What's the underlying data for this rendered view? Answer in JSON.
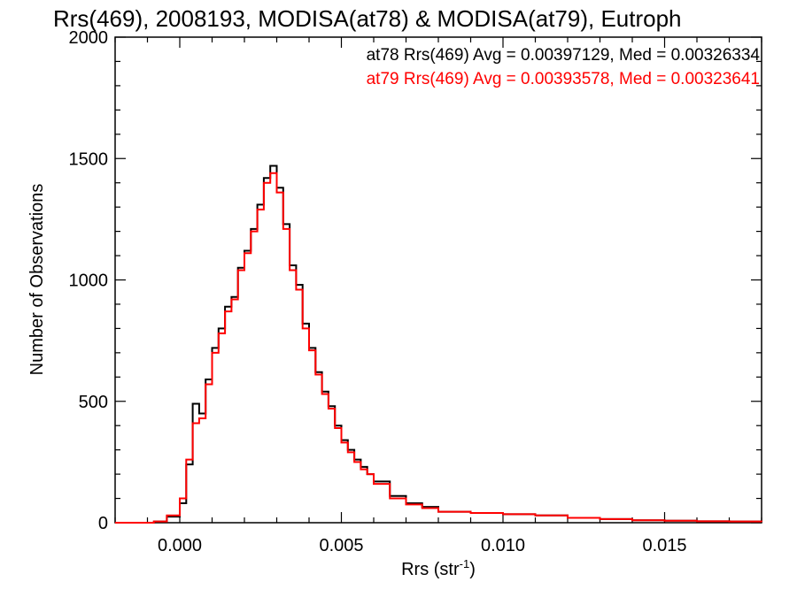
{
  "chart_data": {
    "type": "line",
    "title": "Rrs(469), 2008193, MODISA(at78) & MODISA(at79), Eutroph",
    "xlabel": "Rrs (str",
    "xlabel_sup": "-1",
    "xlabel_close": ")",
    "ylabel": "Number of Observations",
    "xlim": [
      -0.002,
      0.018
    ],
    "ylim": [
      0,
      2000
    ],
    "xticks": [
      0.0,
      0.005,
      0.01,
      0.015
    ],
    "xtick_labels": [
      "0.000",
      "0.005",
      "0.010",
      "0.015"
    ],
    "yticks": [
      0,
      500,
      1000,
      1500,
      2000
    ],
    "ytick_labels": [
      "0",
      "500",
      "1000",
      "1500",
      "2000"
    ],
    "grid": false,
    "legend_position": "top-right",
    "step_plot": true,
    "series": [
      {
        "name": "at78 Rrs(469) Avg = 0.00397129, Med = 0.00326334",
        "color": "#000000",
        "x": [
          -0.002,
          -0.0008,
          -0.0004,
          0.0,
          0.0002,
          0.0004,
          0.0006,
          0.0008,
          0.001,
          0.0012,
          0.0014,
          0.0016,
          0.0018,
          0.002,
          0.0022,
          0.0024,
          0.0026,
          0.0028,
          0.003,
          0.0032,
          0.0034,
          0.0036,
          0.0038,
          0.004,
          0.0042,
          0.0044,
          0.0046,
          0.0048,
          0.005,
          0.0052,
          0.0054,
          0.0056,
          0.0058,
          0.006,
          0.0065,
          0.007,
          0.0075,
          0.008,
          0.009,
          0.01,
          0.011,
          0.012,
          0.013,
          0.014,
          0.015,
          0.016,
          0.017,
          0.018
        ],
        "y": [
          0,
          5,
          25,
          80,
          240,
          490,
          450,
          590,
          720,
          800,
          890,
          930,
          1050,
          1120,
          1210,
          1310,
          1420,
          1470,
          1380,
          1230,
          1060,
          980,
          820,
          720,
          620,
          540,
          480,
          400,
          340,
          300,
          260,
          230,
          200,
          170,
          110,
          80,
          65,
          45,
          40,
          35,
          30,
          20,
          15,
          10,
          8,
          6,
          5,
          3
        ]
      },
      {
        "name": "at79 Rrs(469) Avg = 0.00393578, Med = 0.00323641",
        "color": "#ff0000",
        "x": [
          -0.002,
          -0.0008,
          -0.0004,
          0.0,
          0.0002,
          0.0004,
          0.0006,
          0.0008,
          0.001,
          0.0012,
          0.0014,
          0.0016,
          0.0018,
          0.002,
          0.0022,
          0.0024,
          0.0026,
          0.0028,
          0.003,
          0.0032,
          0.0034,
          0.0036,
          0.0038,
          0.004,
          0.0042,
          0.0044,
          0.0046,
          0.0048,
          0.005,
          0.0052,
          0.0054,
          0.0056,
          0.0058,
          0.006,
          0.0065,
          0.007,
          0.0075,
          0.008,
          0.009,
          0.01,
          0.011,
          0.012,
          0.013,
          0.014,
          0.015,
          0.016,
          0.017,
          0.018
        ],
        "y": [
          0,
          5,
          30,
          100,
          260,
          410,
          430,
          570,
          700,
          780,
          870,
          920,
          1040,
          1110,
          1200,
          1290,
          1400,
          1440,
          1360,
          1210,
          1040,
          960,
          800,
          710,
          610,
          530,
          470,
          390,
          330,
          290,
          250,
          220,
          200,
          160,
          100,
          75,
          60,
          45,
          40,
          35,
          30,
          20,
          15,
          10,
          8,
          6,
          5,
          3
        ]
      }
    ]
  }
}
